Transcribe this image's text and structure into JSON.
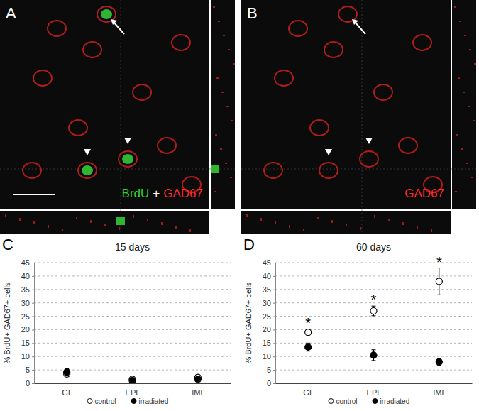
{
  "panels": [
    {
      "letter": "A",
      "label": [
        {
          "text": "BrdU",
          "color": "#2fd12f"
        },
        {
          "text": "+",
          "color": "#ffffff"
        },
        {
          "text": "GAD67",
          "color": "#ff2a2a"
        }
      ]
    },
    {
      "letter": "B",
      "label": [
        {
          "text": "GAD67",
          "color": "#ff2a2a"
        }
      ]
    }
  ],
  "chart_data": [
    {
      "type": "scatter",
      "panel_label": "C",
      "title": "15 days",
      "y_label": "% BrdU+ GAD67+ cells",
      "categories": [
        "GL",
        "EPL",
        "IML"
      ],
      "series": [
        {
          "name": "control",
          "color": "#000000",
          "marker": "open-circle",
          "values": [
            3.5,
            1.5,
            2.2
          ],
          "errors": [
            0.6,
            0.9,
            0.3
          ]
        },
        {
          "name": "irradiated",
          "color": "#000000",
          "marker": "circle",
          "values": [
            4.2,
            1.0,
            1.5
          ],
          "errors": [
            1.2,
            1.0,
            0.3
          ]
        }
      ],
      "ylim": [
        0,
        45
      ],
      "yticks": [
        0,
        5,
        10,
        15,
        20,
        25,
        30,
        35,
        40,
        45
      ],
      "grid": true,
      "legend": "bottom",
      "annotations": []
    },
    {
      "type": "scatter",
      "panel_label": "D",
      "title": "60 days",
      "y_label": "% BrdU+ GAD67+ cells",
      "categories": [
        "GL",
        "EPL",
        "IML"
      ],
      "series": [
        {
          "name": "control",
          "color": "#000000",
          "marker": "open-circle",
          "values": [
            19,
            27,
            38
          ],
          "errors": [
            1.0,
            1.8,
            5.0
          ]
        },
        {
          "name": "irradiated",
          "color": "#000000",
          "marker": "circle",
          "values": [
            13.5,
            10.5,
            8
          ],
          "errors": [
            1.5,
            2.0,
            1.2
          ]
        }
      ],
      "ylim": [
        0,
        45
      ],
      "yticks": [
        0,
        5,
        10,
        15,
        20,
        25,
        30,
        35,
        40,
        45
      ],
      "grid": true,
      "legend": "bottom",
      "annotations": [
        {
          "text": "*",
          "category": 0
        },
        {
          "text": "*",
          "category": 1
        },
        {
          "text": "*",
          "category": 2
        }
      ]
    }
  ]
}
